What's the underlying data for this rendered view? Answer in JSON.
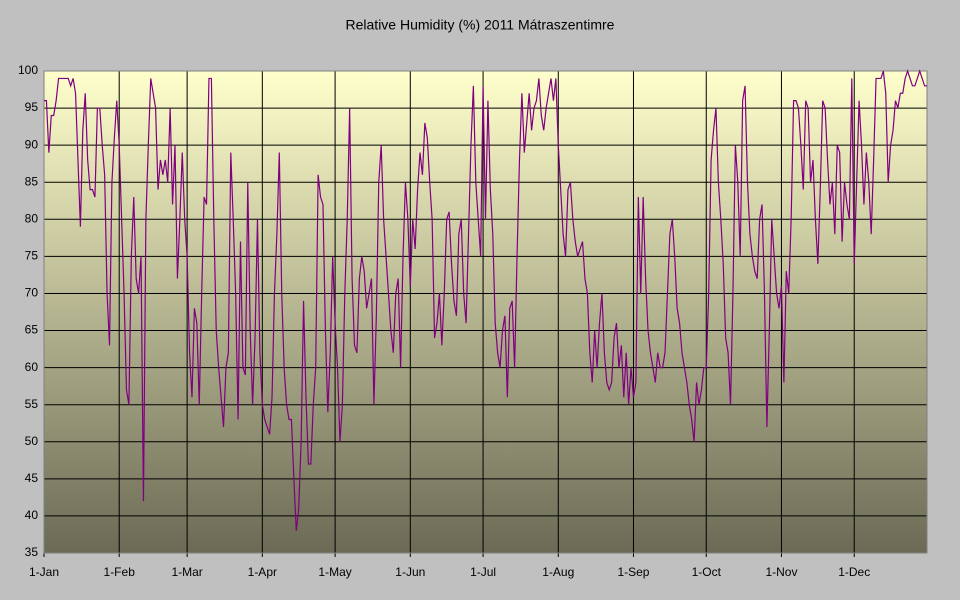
{
  "chart_data": {
    "type": "line",
    "title": "Relative Humidity (%) 2011 Mátraszentimre",
    "categories": [
      "1-Jan",
      null,
      null,
      null,
      null,
      null,
      null,
      null,
      null,
      null,
      null,
      null,
      null,
      null,
      null,
      null,
      null,
      null,
      null,
      null,
      null,
      null,
      null,
      null,
      null,
      null,
      null,
      null,
      null,
      null,
      null,
      "1-Feb",
      null,
      null,
      null,
      null,
      null,
      null,
      null,
      null,
      null,
      null,
      null,
      null,
      null,
      null,
      null,
      null,
      null,
      null,
      null,
      null,
      null,
      null,
      null,
      null,
      null,
      null,
      null,
      "1-Mar",
      null,
      null,
      null,
      null,
      null,
      null,
      null,
      null,
      null,
      null,
      null,
      null,
      null,
      null,
      null,
      null,
      null,
      null,
      null,
      null,
      null,
      null,
      null,
      null,
      null,
      null,
      null,
      null,
      null,
      null,
      "1-Apr",
      null,
      null,
      null,
      null,
      null,
      null,
      null,
      null,
      null,
      null,
      null,
      null,
      null,
      null,
      null,
      null,
      null,
      null,
      null,
      null,
      null,
      null,
      null,
      null,
      null,
      null,
      null,
      null,
      null,
      "1-May",
      null,
      null,
      null,
      null,
      null,
      null,
      null,
      null,
      null,
      null,
      null,
      null,
      null,
      null,
      null,
      null,
      null,
      null,
      null,
      null,
      null,
      null,
      null,
      null,
      null,
      null,
      null,
      null,
      null,
      null,
      "1-Jun",
      null,
      null,
      null,
      null,
      null,
      null,
      null,
      null,
      null,
      null,
      null,
      null,
      null,
      null,
      null,
      null,
      null,
      null,
      null,
      null,
      null,
      null,
      null,
      null,
      null,
      null,
      null,
      null,
      null,
      "1-Jul",
      null,
      null,
      null,
      null,
      null,
      null,
      null,
      null,
      null,
      null,
      null,
      null,
      null,
      null,
      null,
      null,
      null,
      null,
      null,
      null,
      null,
      null,
      null,
      null,
      null,
      null,
      null,
      null,
      null,
      null,
      "1-Aug",
      null,
      null,
      null,
      null,
      null,
      null,
      null,
      null,
      null,
      null,
      null,
      null,
      null,
      null,
      null,
      null,
      null,
      null,
      null,
      null,
      null,
      null,
      null,
      null,
      null,
      null,
      null,
      null,
      null,
      null,
      "1-Sep",
      null,
      null,
      null,
      null,
      null,
      null,
      null,
      null,
      null,
      null,
      null,
      null,
      null,
      null,
      null,
      null,
      null,
      null,
      null,
      null,
      null,
      null,
      null,
      null,
      null,
      null,
      null,
      null,
      null,
      "1-Oct",
      null,
      null,
      null,
      null,
      null,
      null,
      null,
      null,
      null,
      null,
      null,
      null,
      null,
      null,
      null,
      null,
      null,
      null,
      null,
      null,
      null,
      null,
      null,
      null,
      null,
      null,
      null,
      null,
      null,
      null,
      "1-Nov",
      null,
      null,
      null,
      null,
      null,
      null,
      null,
      null,
      null,
      null,
      null,
      null,
      null,
      null,
      null,
      null,
      null,
      null,
      null,
      null,
      null,
      null,
      null,
      null,
      null,
      null,
      null,
      null,
      null,
      "1-Dec",
      null,
      null,
      null,
      null,
      null,
      null,
      null,
      null,
      null,
      null,
      null,
      null,
      null,
      null,
      null,
      null,
      null,
      null,
      null,
      null,
      null,
      null,
      null,
      null,
      null,
      null,
      null,
      null,
      null,
      null
    ],
    "values": [
      96,
      96,
      89,
      94,
      94,
      96,
      99,
      99,
      99,
      99,
      99,
      98,
      99,
      97,
      88,
      79,
      92,
      97,
      88,
      84,
      84,
      83,
      95,
      95,
      90,
      86,
      70,
      63,
      85,
      91,
      96,
      90,
      80,
      70,
      57,
      55,
      75,
      83,
      72,
      70,
      75,
      42,
      80,
      90,
      99,
      97,
      95,
      84,
      88,
      86,
      88,
      85,
      95,
      82,
      90,
      72,
      80,
      89,
      80,
      75,
      62,
      56,
      68,
      66,
      55,
      70,
      83,
      82,
      99,
      99,
      80,
      65,
      60,
      56,
      52,
      60,
      62,
      89,
      80,
      70,
      53,
      77,
      60,
      59,
      85,
      65,
      55,
      64,
      80,
      62,
      55,
      53,
      52,
      51,
      56,
      70,
      78,
      89,
      70,
      60,
      55,
      53,
      53,
      45,
      38,
      41,
      50,
      69,
      56,
      47,
      47,
      55,
      60,
      86,
      83,
      82,
      65,
      54,
      62,
      75,
      66,
      60,
      50,
      55,
      70,
      80,
      95,
      72,
      63,
      62,
      72,
      75,
      73,
      68,
      70,
      72,
      55,
      67,
      85,
      90,
      80,
      75,
      70,
      65,
      62,
      70,
      72,
      60,
      75,
      85,
      80,
      71,
      80,
      76,
      84,
      89,
      86,
      93,
      91,
      85,
      80,
      64,
      66,
      70,
      63,
      70,
      80,
      81,
      74,
      69,
      67,
      78,
      80,
      70,
      66,
      78,
      90,
      98,
      85,
      80,
      75,
      98,
      80,
      96,
      84,
      78,
      66,
      62,
      60,
      65,
      67,
      56,
      68,
      69,
      60,
      75,
      88,
      97,
      89,
      93,
      97,
      92,
      95,
      96,
      99,
      94,
      92,
      95,
      97,
      99,
      96,
      99,
      90,
      84,
      78,
      75,
      84,
      85,
      80,
      77,
      75,
      76,
      77,
      72,
      70,
      62,
      58,
      65,
      60,
      66,
      70,
      62,
      58,
      57,
      58,
      64,
      66,
      60,
      63,
      56,
      62,
      55,
      60,
      56,
      58,
      83,
      70,
      83,
      72,
      65,
      62,
      60,
      58,
      62,
      60,
      60,
      62,
      70,
      78,
      80,
      75,
      68,
      66,
      62,
      60,
      58,
      55,
      53,
      50,
      58,
      55,
      57,
      60,
      60,
      70,
      88,
      92,
      95,
      85,
      80,
      74,
      64,
      62,
      55,
      70,
      90,
      85,
      75,
      96,
      98,
      85,
      78,
      75,
      73,
      72,
      80,
      82,
      70,
      52,
      65,
      80,
      75,
      70,
      68,
      71,
      58,
      73,
      70,
      80,
      96,
      96,
      95,
      90,
      84,
      96,
      95,
      85,
      88,
      80,
      74,
      84,
      96,
      95,
      88,
      82,
      85,
      78,
      90,
      89,
      77,
      85,
      82,
      80,
      99,
      74,
      85,
      96,
      90,
      82,
      89,
      85,
      78,
      88,
      99,
      99,
      99,
      100,
      97,
      85,
      90,
      92,
      96,
      95,
      97,
      97,
      99,
      100,
      99,
      98,
      98,
      99,
      100,
      99,
      98,
      98
    ],
    "color": "#800080",
    "ylim": [
      35,
      100
    ],
    "yticks": [
      35,
      40,
      45,
      50,
      55,
      60,
      65,
      70,
      75,
      80,
      85,
      90,
      95,
      100
    ],
    "grid": true
  }
}
